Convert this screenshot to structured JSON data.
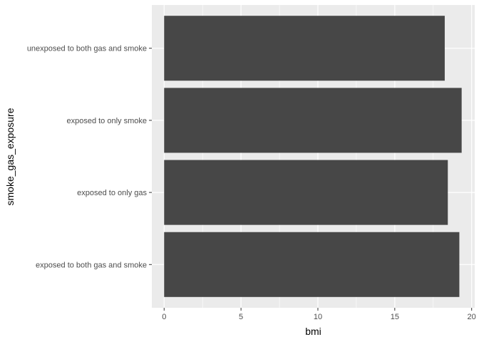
{
  "chart_data": {
    "type": "bar",
    "orientation": "horizontal",
    "categories": [
      "exposed to both gas and smoke",
      "exposed to only gas",
      "exposed to only smoke",
      "unexposed to both gas and smoke"
    ],
    "values": [
      19.2,
      18.45,
      19.35,
      18.25
    ],
    "xlabel": "bmi",
    "ylabel": "smoke_gas_exposure",
    "xlim": [
      -0.8,
      20.2
    ],
    "xticks": [
      0,
      5,
      10,
      15,
      20
    ],
    "grid": true,
    "colors": {
      "panel": "#ebebeb",
      "grid_major": "#ffffff",
      "bar": "#474747",
      "tick_text": "#4d4d4d",
      "axis_title": "#000000"
    }
  }
}
